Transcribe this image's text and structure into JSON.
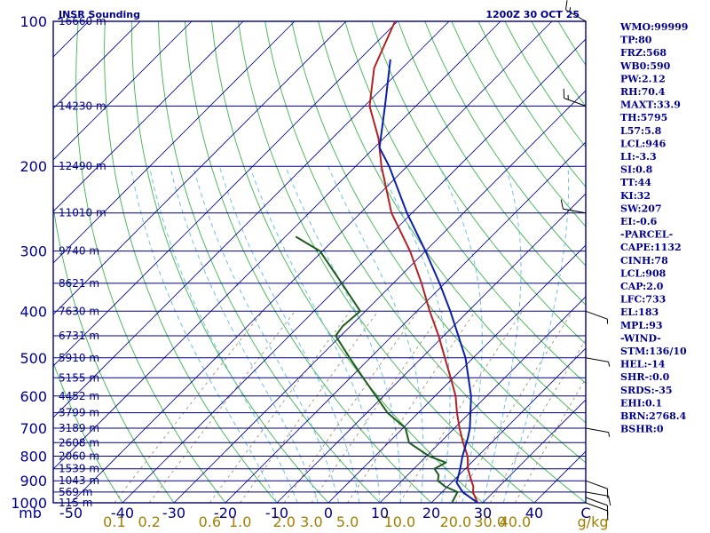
{
  "header": {
    "title": "JNSR Sounding",
    "time": "1200Z 30 OCT 25"
  },
  "colors": {
    "frame": "#00008b",
    "isobar": "#000080",
    "isotherm": "#000080",
    "dry_adiabat": "#3cb44b",
    "moist_adiabat": "#6ec1e0",
    "mixing_ratio": "#a08060",
    "temperature": "#b22222",
    "dewpoint": "#1c5d1c",
    "parcel": "#0a1fa8",
    "label_text": "#00008b",
    "mixing_label": "#a08000"
  },
  "axes": {
    "pressure_unit": "mb",
    "mixing_unit": "g/kg",
    "pressure_labels": [
      "100",
      "200",
      "300",
      "400",
      "500",
      "600",
      "700",
      "800",
      "900",
      "1000"
    ],
    "temperature_labels": [
      "-50",
      "-40",
      "-30",
      "-20",
      "-10",
      "0",
      "10",
      "20",
      "30",
      "40",
      "C"
    ],
    "mixing_ratio_labels": [
      "0.1",
      "0.2",
      "0.6",
      "1.0",
      "2.0",
      "3.0",
      "5.0",
      "10.0",
      "20.0",
      "30.0",
      "40.0"
    ]
  },
  "heights": [
    {
      "p": 100,
      "h": "16660 m"
    },
    {
      "p": 150,
      "h": "14230 m"
    },
    {
      "p": 200,
      "h": "12490 m"
    },
    {
      "p": 250,
      "h": "11010 m"
    },
    {
      "p": 300,
      "h": "9740 m"
    },
    {
      "p": 350,
      "h": "8621 m"
    },
    {
      "p": 400,
      "h": "7630 m"
    },
    {
      "p": 450,
      "h": "6731 m"
    },
    {
      "p": 500,
      "h": "5910 m"
    },
    {
      "p": 550,
      "h": "5155 m"
    },
    {
      "p": 600,
      "h": "4452 m"
    },
    {
      "p": 650,
      "h": "3799 m"
    },
    {
      "p": 700,
      "h": "3189 m"
    },
    {
      "p": 750,
      "h": "2608 m"
    },
    {
      "p": 800,
      "h": "2060 m"
    },
    {
      "p": 850,
      "h": "1539 m"
    },
    {
      "p": 900,
      "h": "1043 m"
    },
    {
      "p": 950,
      "h": "569 m"
    },
    {
      "p": 1000,
      "h": "115 m"
    }
  ],
  "indices": [
    "WMO:99999",
    "TP:80",
    "FRZ:568",
    "WB0:590",
    "PW:2.12",
    "RH:70.4",
    "MAXT:33.9",
    "TH:5795",
    "L57:5.8",
    "LCL:946",
    "LI:-3.3",
    "SI:0.8",
    "TT:44",
    "KI:32",
    "SW:207",
    "EI:-0.6",
    "-PARCEL-",
    "CAPE:1132",
    "CINH:78",
    "LCL:908",
    "CAP:2.0",
    "LFC:733",
    "EL:183",
    "MPL:93",
    "-WIND-",
    "STM:136/10",
    "HEL:-14",
    "SHR-:0.0",
    "SRDS:-35",
    "EHI:0.1",
    "BRN:2768.4",
    "BSHR:0"
  ],
  "chart_data": {
    "type": "skew-t",
    "title": "JNSR Sounding",
    "subtitle": "1200Z 30 OCT 25",
    "xlabel": "C",
    "ylabel": "mb",
    "xlim": [
      -50,
      50
    ],
    "ylim": [
      1000,
      100
    ],
    "series": [
      {
        "points": [
          {
            "p": 1000,
            "t": 29.0
          },
          {
            "p": 975,
            "t": 27.5
          },
          {
            "p": 950,
            "t": 26.0
          },
          {
            "p": 925,
            "t": 25.0
          },
          {
            "p": 900,
            "t": 23.5
          },
          {
            "p": 850,
            "t": 20.5
          },
          {
            "p": 800,
            "t": 18.0
          },
          {
            "p": 750,
            "t": 14.5
          },
          {
            "p": 700,
            "t": 11.0
          },
          {
            "p": 650,
            "t": 7.5
          },
          {
            "p": 600,
            "t": 4.0
          },
          {
            "p": 550,
            "t": -0.5
          },
          {
            "p": 500,
            "t": -5.5
          },
          {
            "p": 450,
            "t": -11.0
          },
          {
            "p": 400,
            "t": -17.5
          },
          {
            "p": 350,
            "t": -24.5
          },
          {
            "p": 300,
            "t": -33.0
          },
          {
            "p": 250,
            "t": -44.0
          },
          {
            "p": 200,
            "t": -55.0
          },
          {
            "p": 175,
            "t": -61.0
          },
          {
            "p": 150,
            "t": -69.0
          },
          {
            "p": 125,
            "t": -75.5
          },
          {
            "p": 100,
            "t": -80.5
          }
        ]
      },
      {
        "points": [
          {
            "p": 1000,
            "t": 24.0
          },
          {
            "p": 975,
            "t": 23.5
          },
          {
            "p": 950,
            "t": 23.0
          },
          {
            "p": 925,
            "t": 19.5
          },
          {
            "p": 900,
            "t": 17.0
          },
          {
            "p": 875,
            "t": 16.0
          },
          {
            "p": 850,
            "t": 14.0
          },
          {
            "p": 825,
            "t": 15.0
          },
          {
            "p": 800,
            "t": 10.5
          },
          {
            "p": 750,
            "t": 4.0
          },
          {
            "p": 700,
            "t": 0.5
          },
          {
            "p": 650,
            "t": -6.0
          },
          {
            "p": 600,
            "t": -11.5
          },
          {
            "p": 550,
            "t": -17.5
          },
          {
            "p": 500,
            "t": -24.0
          },
          {
            "p": 450,
            "t": -31.0
          },
          {
            "p": 430,
            "t": -31.5
          },
          {
            "p": 400,
            "t": -31.0
          },
          {
            "p": 350,
            "t": -40.0
          },
          {
            "p": 300,
            "t": -50.5
          },
          {
            "p": 280,
            "t": -58.0
          }
        ]
      },
      {
        "points": [
          {
            "p": 1000,
            "t": 29.0
          },
          {
            "p": 950,
            "t": 24.0
          },
          {
            "p": 908,
            "t": 21.0
          },
          {
            "p": 850,
            "t": 19.0
          },
          {
            "p": 800,
            "t": 17.0
          },
          {
            "p": 733,
            "t": 14.5
          },
          {
            "p": 700,
            "t": 13.0
          },
          {
            "p": 600,
            "t": 7.0
          },
          {
            "p": 500,
            "t": -1.5
          },
          {
            "p": 400,
            "t": -13.5
          },
          {
            "p": 350,
            "t": -21.0
          },
          {
            "p": 300,
            "t": -30.0
          },
          {
            "p": 250,
            "t": -41.0
          },
          {
            "p": 200,
            "t": -53.5
          },
          {
            "p": 183,
            "t": -59.0
          },
          {
            "p": 150,
            "t": -66.0
          },
          {
            "p": 120,
            "t": -74.0
          }
        ]
      }
    ],
    "wind_barbs": [
      {
        "p": 100,
        "dir": 300,
        "speed": 15
      },
      {
        "p": 150,
        "dir": 290,
        "speed": 15
      },
      {
        "p": 250,
        "dir": 280,
        "speed": 10
      },
      {
        "p": 400,
        "dir": 110,
        "speed": 5
      },
      {
        "p": 500,
        "dir": 100,
        "speed": 5
      },
      {
        "p": 700,
        "dir": 100,
        "speed": 5
      },
      {
        "p": 900,
        "dir": 110,
        "speed": 10
      },
      {
        "p": 950,
        "dir": 100,
        "speed": 10
      },
      {
        "p": 975,
        "dir": 110,
        "speed": 10
      },
      {
        "p": 1000,
        "dir": 110,
        "speed": 10
      }
    ]
  }
}
